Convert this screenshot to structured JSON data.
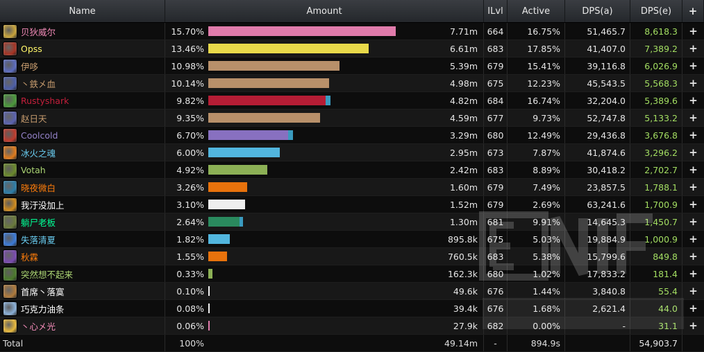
{
  "header": {
    "name": "Name",
    "amount": "Amount",
    "ilvl": "ILvl",
    "active": "Active",
    "dps_a": "DPS(a)",
    "dps_e": "DPS(e)",
    "plus": "+"
  },
  "rows": [
    {
      "name": "贝狄威尔",
      "name_color": "#f58cba",
      "icon": "paladin-class-icon",
      "icon_color": "#c9a43a",
      "pct": "15.70%",
      "fraction": 0.157,
      "bar_color": "#e07bab",
      "amount": "7.71m",
      "ilvl": "664",
      "active": "16.75%",
      "dps_a": "51,465.7",
      "dps_e": "8,618.3"
    },
    {
      "name": "Opss",
      "name_color": "#fff569",
      "icon": "rogue-class-icon",
      "icon_color": "#a83222",
      "pct": "13.46%",
      "fraction": 0.1346,
      "bar_color": "#e8d94a",
      "amount": "6.61m",
      "ilvl": "683",
      "active": "17.85%",
      "dps_a": "41,407.0",
      "dps_e": "7,389.2"
    },
    {
      "name": "伊哆",
      "name_color": "#c79c6e",
      "icon": "warrior-class-icon",
      "icon_color": "#5b6bbf",
      "pct": "10.98%",
      "fraction": 0.1098,
      "bar_color": "#b8906a",
      "amount": "5.39m",
      "ilvl": "679",
      "active": "15.41%",
      "dps_a": "39,116.8",
      "dps_e": "6,026.9"
    },
    {
      "name": "丶鉄㐅血",
      "name_color": "#c79c6e",
      "icon": "warrior-class-icon",
      "icon_color": "#4c5ea8",
      "pct": "10.14%",
      "fraction": 0.1014,
      "bar_color": "#b8906a",
      "amount": "4.98m",
      "ilvl": "675",
      "active": "12.23%",
      "dps_a": "45,543.5",
      "dps_e": "5,568.3"
    },
    {
      "name": "Rustyshark",
      "name_color": "#c41f3b",
      "icon": "death-knight-class-icon",
      "icon_color": "#4a9a3a",
      "pct": "9.82%",
      "fraction": 0.0982,
      "bar_color": "#b51d35",
      "bar2_fraction": 0.0038,
      "amount": "4.82m",
      "ilvl": "684",
      "active": "16.74%",
      "dps_a": "32,204.0",
      "dps_e": "5,389.6"
    },
    {
      "name": "赵日天",
      "name_color": "#c79c6e",
      "icon": "warrior-class-icon",
      "icon_color": "#5a62b0",
      "pct": "9.35%",
      "fraction": 0.0935,
      "bar_color": "#b8906a",
      "amount": "4.59m",
      "ilvl": "677",
      "active": "9.73%",
      "dps_a": "52,747.8",
      "dps_e": "5,133.2"
    },
    {
      "name": "Coolcold",
      "name_color": "#9482c9",
      "icon": "warlock-class-icon",
      "icon_color": "#c0392b",
      "pct": "6.70%",
      "fraction": 0.067,
      "bar_color": "#8870c0",
      "bar2_fraction": 0.0038,
      "amount": "3.29m",
      "ilvl": "680",
      "active": "12.49%",
      "dps_a": "29,436.8",
      "dps_e": "3,676.8"
    },
    {
      "name": "冰火之魂",
      "name_color": "#69ccf0",
      "icon": "mage-class-icon",
      "icon_color": "#e07a1a",
      "pct": "6.00%",
      "fraction": 0.06,
      "bar_color": "#52b6de",
      "amount": "2.95m",
      "ilvl": "673",
      "active": "7.87%",
      "dps_a": "41,874.6",
      "dps_e": "3,296.2"
    },
    {
      "name": "Votah",
      "name_color": "#abd473",
      "icon": "hunter-class-icon",
      "icon_color": "#6a8a2a",
      "pct": "4.92%",
      "fraction": 0.0492,
      "bar_color": "#8cb055",
      "amount": "2.42m",
      "ilvl": "683",
      "active": "8.89%",
      "dps_a": "30,418.2",
      "dps_e": "2,702.7"
    },
    {
      "name": "晓夜微白",
      "name_color": "#ff7d0a",
      "icon": "druid-class-icon",
      "icon_color": "#2b7da8",
      "pct": "3.26%",
      "fraction": 0.0326,
      "bar_color": "#e8720c",
      "amount": "1.60m",
      "ilvl": "679",
      "active": "7.49%",
      "dps_a": "23,857.5",
      "dps_e": "1,788.1"
    },
    {
      "name": "我汙没加上",
      "name_color": "#ffffff",
      "icon": "priest-class-icon",
      "icon_color": "#d08a1a",
      "pct": "3.10%",
      "fraction": 0.031,
      "bar_color": "#eeeeee",
      "amount": "1.52m",
      "ilvl": "679",
      "active": "2.69%",
      "dps_a": "63,241.6",
      "dps_e": "1,700.9"
    },
    {
      "name": "躺尸老板",
      "name_color": "#00ff96",
      "icon": "monk-class-icon",
      "icon_color": "#6a7a3a",
      "pct": "2.64%",
      "fraction": 0.0264,
      "bar_color": "#2a8a5e",
      "bar2_fraction": 0.0028,
      "amount": "1.30m",
      "ilvl": "681",
      "active": "9.91%",
      "dps_a": "14,645.3",
      "dps_e": "1,450.7"
    },
    {
      "name": "失落清夏",
      "name_color": "#69ccf0",
      "icon": "mage-class-icon",
      "icon_color": "#3a7ad8",
      "pct": "1.82%",
      "fraction": 0.0182,
      "bar_color": "#52b6de",
      "amount": "895.8k",
      "ilvl": "675",
      "active": "5.03%",
      "dps_a": "19,884.9",
      "dps_e": "1,000.9"
    },
    {
      "name": "秋霖",
      "name_color": "#ff7d0a",
      "icon": "druid-class-icon",
      "icon_color": "#7a4ab0",
      "pct": "1.55%",
      "fraction": 0.0155,
      "bar_color": "#e8720c",
      "amount": "760.5k",
      "ilvl": "683",
      "active": "5.38%",
      "dps_a": "15,799.6",
      "dps_e": "849.8"
    },
    {
      "name": "突然想不起来",
      "name_color": "#abd473",
      "icon": "hunter-class-icon",
      "icon_color": "#4a7a2a",
      "pct": "0.33%",
      "fraction": 0.0033,
      "bar_color": "#8cb055",
      "amount": "162.3k",
      "ilvl": "680",
      "active": "1.02%",
      "dps_a": "17,833.2",
      "dps_e": "181.4"
    },
    {
      "name": "首席丶落寞",
      "name_color": "#ffffff",
      "icon": "priest-class-icon",
      "icon_color": "#b07a3a",
      "pct": "0.10%",
      "fraction": 0.001,
      "bar_color": "#eeeeee",
      "amount": "49.6k",
      "ilvl": "676",
      "active": "1.44%",
      "dps_a": "3,840.8",
      "dps_e": "55.4"
    },
    {
      "name": "巧克力油条",
      "name_color": "#ffffff",
      "icon": "priest-class-icon",
      "icon_color": "#8ab0d8",
      "pct": "0.08%",
      "fraction": 0.0008,
      "bar_color": "#eeeeee",
      "amount": "39.4k",
      "ilvl": "676",
      "active": "1.68%",
      "dps_a": "2,621.4",
      "dps_e": "44.0"
    },
    {
      "name": "丶心㐅光",
      "name_color": "#f58cba",
      "icon": "paladin-class-icon",
      "icon_color": "#e8b83a",
      "pct": "0.06%",
      "fraction": 0.0006,
      "bar_color": "#e07bab",
      "amount": "27.9k",
      "ilvl": "682",
      "active": "0.00%",
      "dps_a": "-",
      "dps_e": "31.1"
    }
  ],
  "total": {
    "label": "Total",
    "pct": "100%",
    "amount": "49.14m",
    "ilvl": "-",
    "active": "894.9s",
    "dps_a": "",
    "dps_e": "54,903.7"
  }
}
